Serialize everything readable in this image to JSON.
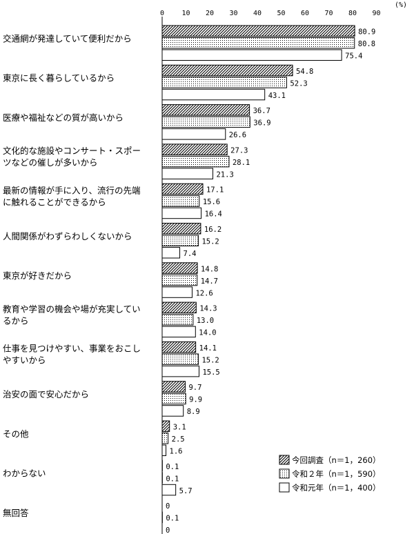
{
  "chart_data": {
    "type": "bar",
    "orientation": "horizontal",
    "unit_label": "(%)",
    "xlim": [
      0,
      90
    ],
    "xticks": [
      0,
      10,
      20,
      30,
      40,
      50,
      60,
      70,
      80,
      90
    ],
    "grid": false,
    "legend_position": "bottom-right",
    "categories": [
      [
        "交通網が発達していて便利だから"
      ],
      [
        "東京に長く暮らしているから"
      ],
      [
        "医療や福祉などの質が高いから"
      ],
      [
        "文化的な施設やコンサート・スポー",
        "ツなどの催しが多いから"
      ],
      [
        "最新の情報が手に入り、流行の先端",
        "に触れることができるから"
      ],
      [
        "人間関係がわずらわしくないから"
      ],
      [
        "東京が好きだから"
      ],
      [
        "教育や学習の機会や場が充実してい",
        "るから"
      ],
      [
        "仕事を見つけやすい、事業をおこし",
        "やすいから"
      ],
      [
        "治安の面で安心だから"
      ],
      [
        "その他"
      ],
      [
        "わからない"
      ],
      [
        "無回答"
      ]
    ],
    "series": [
      {
        "name": "今回調査（n＝1，260）",
        "pattern": "hatch",
        "values": [
          80.9,
          54.8,
          36.7,
          27.3,
          17.1,
          16.2,
          14.8,
          14.3,
          14.1,
          9.7,
          3.1,
          0.1,
          0
        ],
        "labels": [
          "80.9",
          "54.8",
          "36.7",
          "27.3",
          "17.1",
          "16.2",
          "14.8",
          "14.3",
          "14.1",
          "9.7",
          "3.1",
          "0.1",
          "0"
        ]
      },
      {
        "name": "令和２年（n＝1，590）",
        "pattern": "dots",
        "values": [
          80.8,
          52.3,
          36.9,
          28.1,
          15.6,
          15.2,
          14.7,
          13.0,
          15.2,
          9.9,
          2.5,
          0.1,
          0.1
        ],
        "labels": [
          "80.8",
          "52.3",
          "36.9",
          "28.1",
          "15.6",
          "15.2",
          "14.7",
          "13.0",
          "15.2",
          "9.9",
          "2.5",
          "0.1",
          "0.1"
        ]
      },
      {
        "name": "令和元年（n＝1，400）",
        "pattern": "white",
        "values": [
          75.4,
          43.1,
          26.6,
          21.3,
          16.4,
          7.4,
          12.6,
          14.0,
          15.5,
          8.9,
          1.6,
          5.7,
          0
        ],
        "labels": [
          "75.4",
          "43.1",
          "26.6",
          "21.3",
          "16.4",
          "7.4",
          "12.6",
          "14.0",
          "15.5",
          "8.9",
          "1.6",
          "5.7",
          "0"
        ]
      }
    ]
  }
}
